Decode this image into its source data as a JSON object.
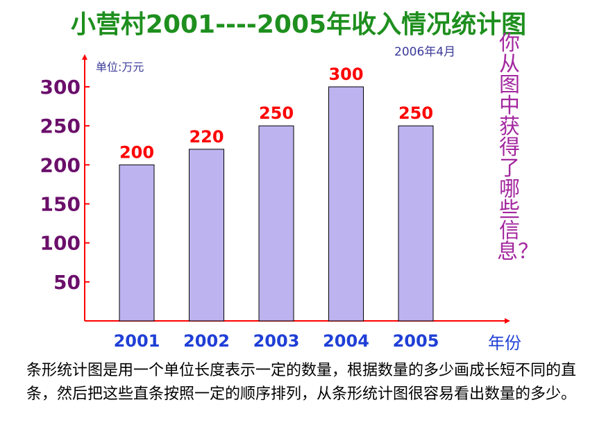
{
  "title": "小营村2001----2005年收入情况统计图",
  "date": "2006年4月",
  "side_question": "你从图中获得了哪些信息？",
  "description": "条形统计图是用一个单位长度表示一定的数量，根据数量的多少画成长短不同的直条，然后把这些直条按照一定的顺序排列，从条形统计图很容易看出数量的多少。",
  "colors": {
    "bar_fill": "#bcb3ef",
    "bar_stroke": "#000000",
    "axis": "#ff0000",
    "title": "#1e8f1e",
    "value_label": "#ff0000",
    "y_tick": "#6b0f6b",
    "x_tick": "#1f3fd6"
  },
  "chart_data": {
    "type": "bar",
    "title": "小营村2001----2005年收入情况统计图",
    "categories": [
      "2001",
      "2002",
      "2003",
      "2004",
      "2005"
    ],
    "values": [
      200,
      220,
      250,
      300,
      250
    ],
    "value_labels": [
      "200",
      "220",
      "250",
      "300",
      "250"
    ],
    "ylabel": "单位:万元",
    "xlabel": "年份",
    "yticks": [
      50,
      100,
      150,
      200,
      250,
      300
    ],
    "ylim": [
      0,
      300
    ],
    "grid": false,
    "legend": "none"
  }
}
